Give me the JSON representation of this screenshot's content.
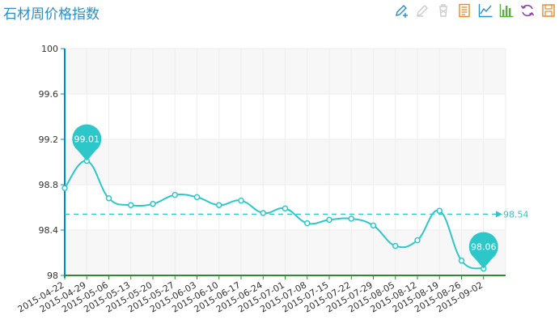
{
  "title": "石材周价格指数",
  "toolbox": {
    "items": [
      {
        "name": "data-zoom",
        "icon": "zoom-pencil-icon",
        "color": "#2b8fc5",
        "active": true
      },
      {
        "name": "data-zoom-reset",
        "icon": "zoom-reset-icon",
        "color": "#cccccc",
        "active": false
      },
      {
        "name": "clear",
        "icon": "trash-icon",
        "color": "#cccccc",
        "active": false
      },
      {
        "name": "data-view",
        "icon": "data-view-icon",
        "color": "#e58a2b",
        "active": true
      },
      {
        "name": "line",
        "icon": "line-chart-icon",
        "color": "#2b8fc5",
        "active": true
      },
      {
        "name": "bar",
        "icon": "bar-chart-icon",
        "color": "#55b13a",
        "active": true
      },
      {
        "name": "restore",
        "icon": "refresh-icon",
        "color": "#8e44ad",
        "active": true
      },
      {
        "name": "save-image",
        "icon": "save-icon",
        "color": "#e58a2b",
        "active": true
      }
    ]
  },
  "chart_data": {
    "type": "line",
    "title": "石材周价格指数",
    "xlabel": "",
    "ylabel": "",
    "categories": [
      "2015-04-22",
      "2015-04-29",
      "2015-05-06",
      "2015-05-13",
      "2015-05-20",
      "2015-05-27",
      "2015-06-03",
      "2015-06-10",
      "2015-06-17",
      "2015-06-24",
      "2015-07-01",
      "2015-07-08",
      "2015-07-15",
      "2015-07-22",
      "2015-07-29",
      "2015-08-05",
      "2015-08-12",
      "2015-08-19",
      "2015-08-26",
      "2015-09-02"
    ],
    "series": [
      {
        "name": "",
        "values": [
          98.77,
          99.01,
          98.68,
          98.62,
          98.63,
          98.71,
          98.69,
          98.62,
          98.66,
          98.55,
          98.59,
          98.46,
          98.49,
          98.5,
          98.44,
          98.26,
          98.31,
          98.57,
          98.13,
          98.06
        ]
      }
    ],
    "ylim": [
      98,
      100
    ],
    "yticks": [
      "98",
      "98.4",
      "98.8",
      "99.2",
      "99.6",
      "100"
    ],
    "mark_points": [
      {
        "type": "max",
        "label": "99.01"
      },
      {
        "type": "min",
        "label": "98.06"
      }
    ],
    "mark_line": {
      "type": "average",
      "value": 98.54,
      "label": "98.54"
    },
    "grid": true,
    "colors": {
      "line": "#2ec7c9",
      "axis": "#008acd",
      "x_axis": "#2e8b2e",
      "grid": "#eeeeee",
      "band": "#f7f7f7"
    }
  }
}
